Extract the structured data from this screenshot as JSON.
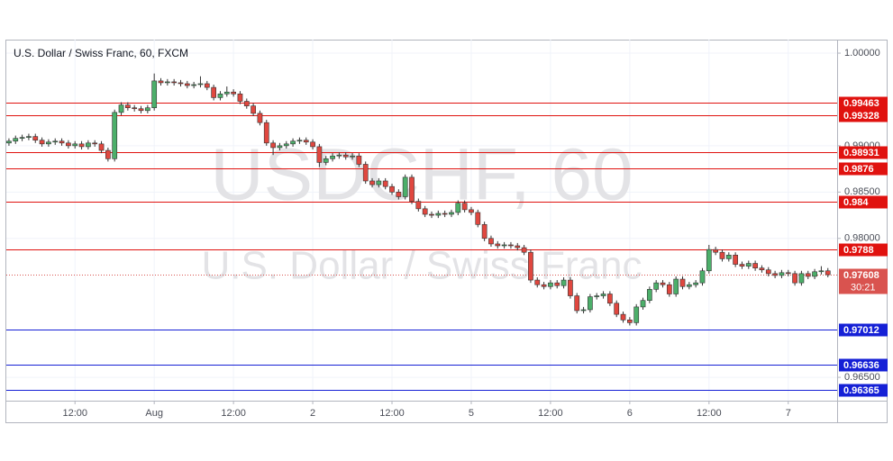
{
  "chart_data": {
    "type": "candlestick",
    "title": "U.S. Dollar / Swiss Franc, 60, FXCM",
    "watermark": "USDCHF, 60",
    "watermark_subtitle": "U.S. Dollar / Swiss Franc",
    "x": [
      0,
      1,
      2,
      3,
      4,
      5,
      6,
      7,
      8,
      9,
      10,
      11,
      12,
      13,
      14,
      15,
      16,
      17,
      18,
      19,
      20,
      21,
      22,
      23,
      24,
      25,
      26,
      27,
      28,
      29,
      30,
      31,
      32,
      33,
      34,
      35,
      36,
      37,
      38,
      39,
      40,
      41,
      42,
      43,
      44,
      45,
      46,
      47,
      48,
      49,
      50,
      51,
      52,
      53,
      54,
      55,
      56,
      57,
      58,
      59,
      60,
      61,
      62,
      63,
      64,
      65,
      66,
      67,
      68,
      69,
      70,
      71,
      72,
      73,
      74,
      75,
      76,
      77,
      78,
      79,
      80,
      81,
      82,
      83,
      84,
      85,
      86,
      87,
      88,
      89,
      90,
      91,
      92,
      93,
      94,
      95,
      96,
      97,
      98,
      99,
      100,
      101,
      102,
      103,
      104,
      105,
      106,
      107,
      108,
      109,
      110,
      111,
      112,
      113,
      114,
      115,
      116,
      117,
      118,
      119,
      120,
      121,
      122,
      123,
      124
    ],
    "open": [
      0.9903,
      0.9905,
      0.9908,
      0.9909,
      0.991,
      0.9906,
      0.9902,
      0.9904,
      0.9905,
      0.9903,
      0.99,
      0.9902,
      0.9899,
      0.9903,
      0.9902,
      0.9895,
      0.9886,
      0.9936,
      0.9944,
      0.9941,
      0.994,
      0.9938,
      0.9941,
      0.997,
      0.9968,
      0.9969,
      0.9968,
      0.9967,
      0.9965,
      0.9966,
      0.9967,
      0.9963,
      0.9952,
      0.9956,
      0.9958,
      0.9956,
      0.9948,
      0.9943,
      0.9935,
      0.9925,
      0.9903,
      0.9898,
      0.99,
      0.9902,
      0.9905,
      0.9906,
      0.9904,
      0.9899,
      0.9882,
      0.9886,
      0.9889,
      0.989,
      0.9888,
      0.9889,
      0.988,
      0.9862,
      0.9858,
      0.9862,
      0.9856,
      0.985,
      0.9845,
      0.9866,
      0.984,
      0.9832,
      0.9826,
      0.9825,
      0.9827,
      0.9826,
      0.9828,
      0.9838,
      0.9831,
      0.9828,
      0.9815,
      0.98,
      0.9794,
      0.9792,
      0.9793,
      0.9792,
      0.979,
      0.9785,
      0.9755,
      0.975,
      0.9748,
      0.9752,
      0.9749,
      0.9755,
      0.9738,
      0.9722,
      0.9723,
      0.9737,
      0.9738,
      0.974,
      0.973,
      0.9718,
      0.9712,
      0.9709,
      0.9726,
      0.9733,
      0.9745,
      0.9752,
      0.975,
      0.974,
      0.9756,
      0.9748,
      0.975,
      0.9752,
      0.9765,
      0.9788,
      0.9785,
      0.9778,
      0.9782,
      0.9772,
      0.977,
      0.9773,
      0.9768,
      0.9766,
      0.9762,
      0.976,
      0.9763,
      0.9762,
      0.9752,
      0.9762,
      0.9759,
      0.9764,
      0.9765
    ],
    "high": [
      0.9908,
      0.9911,
      0.9912,
      0.9913,
      0.9913,
      0.9909,
      0.9907,
      0.9908,
      0.9908,
      0.9906,
      0.9905,
      0.9905,
      0.9906,
      0.9906,
      0.9905,
      0.9898,
      0.9939,
      0.9947,
      0.9947,
      0.9944,
      0.9943,
      0.9944,
      0.9978,
      0.9973,
      0.9972,
      0.9972,
      0.9971,
      0.997,
      0.9969,
      0.9975,
      0.997,
      0.9966,
      0.9959,
      0.9964,
      0.9961,
      0.9959,
      0.9951,
      0.9946,
      0.9938,
      0.9928,
      0.9906,
      0.9903,
      0.9905,
      0.9908,
      0.9909,
      0.9909,
      0.9907,
      0.9902,
      0.9889,
      0.9892,
      0.9893,
      0.9893,
      0.9892,
      0.9892,
      0.9883,
      0.9865,
      0.9865,
      0.9865,
      0.9859,
      0.9853,
      0.9869,
      0.9869,
      0.9843,
      0.9835,
      0.9829,
      0.983,
      0.983,
      0.9831,
      0.9841,
      0.9841,
      0.9834,
      0.9831,
      0.9818,
      0.9803,
      0.9797,
      0.9796,
      0.9796,
      0.9795,
      0.9793,
      0.9788,
      0.9758,
      0.9753,
      0.9755,
      0.9755,
      0.9758,
      0.9758,
      0.9741,
      0.9726,
      0.974,
      0.9741,
      0.9743,
      0.9743,
      0.9733,
      0.9721,
      0.9715,
      0.9729,
      0.9736,
      0.9748,
      0.9755,
      0.9755,
      0.9753,
      0.9759,
      0.9759,
      0.9753,
      0.9755,
      0.9768,
      0.9793,
      0.9791,
      0.9788,
      0.9785,
      0.9785,
      0.9775,
      0.9776,
      0.9776,
      0.9771,
      0.9769,
      0.9765,
      0.9766,
      0.9766,
      0.9765,
      0.9765,
      0.9765,
      0.9767,
      0.977,
      0.9768
    ],
    "low": [
      0.99,
      0.9902,
      0.9905,
      0.9906,
      0.9903,
      0.9899,
      0.9899,
      0.9901,
      0.99,
      0.9897,
      0.9897,
      0.9896,
      0.9896,
      0.9899,
      0.9892,
      0.9883,
      0.9883,
      0.9933,
      0.9938,
      0.9937,
      0.9935,
      0.9935,
      0.9938,
      0.9965,
      0.9965,
      0.9965,
      0.9964,
      0.9962,
      0.9962,
      0.9963,
      0.996,
      0.9949,
      0.9949,
      0.9953,
      0.9953,
      0.9945,
      0.994,
      0.9932,
      0.9922,
      0.99,
      0.989,
      0.9895,
      0.9897,
      0.9899,
      0.9902,
      0.9901,
      0.9896,
      0.9877,
      0.9879,
      0.9883,
      0.9886,
      0.9885,
      0.9885,
      0.9877,
      0.9859,
      0.9855,
      0.9855,
      0.9853,
      0.9847,
      0.9842,
      0.9842,
      0.9837,
      0.9829,
      0.9823,
      0.9822,
      0.9822,
      0.9823,
      0.9823,
      0.9825,
      0.9828,
      0.9825,
      0.9812,
      0.9797,
      0.9791,
      0.9789,
      0.9789,
      0.9789,
      0.9787,
      0.9782,
      0.9752,
      0.9747,
      0.9745,
      0.9745,
      0.9746,
      0.9746,
      0.9735,
      0.9719,
      0.9719,
      0.972,
      0.9734,
      0.9735,
      0.9727,
      0.9715,
      0.9709,
      0.9706,
      0.9706,
      0.9723,
      0.973,
      0.9742,
      0.9747,
      0.9737,
      0.9737,
      0.9745,
      0.9745,
      0.9747,
      0.9749,
      0.9762,
      0.9782,
      0.9775,
      0.9775,
      0.9769,
      0.9767,
      0.9767,
      0.9765,
      0.9763,
      0.9759,
      0.9757,
      0.9757,
      0.9759,
      0.9749,
      0.9749,
      0.9756,
      0.9756,
      0.9761,
      0.9758
    ],
    "close": [
      0.9905,
      0.9908,
      0.9909,
      0.991,
      0.9906,
      0.9902,
      0.9904,
      0.9905,
      0.9903,
      0.99,
      0.9902,
      0.9899,
      0.9903,
      0.9902,
      0.9895,
      0.9886,
      0.9936,
      0.9944,
      0.9941,
      0.994,
      0.9938,
      0.9941,
      0.997,
      0.9968,
      0.9969,
      0.9968,
      0.9967,
      0.9965,
      0.9966,
      0.9967,
      0.9963,
      0.9952,
      0.9956,
      0.9958,
      0.9956,
      0.9948,
      0.9943,
      0.9935,
      0.9925,
      0.9903,
      0.9898,
      0.99,
      0.9902,
      0.9905,
      0.9906,
      0.9904,
      0.9899,
      0.9882,
      0.9886,
      0.9889,
      0.989,
      0.9888,
      0.9889,
      0.988,
      0.9862,
      0.9858,
      0.9862,
      0.9856,
      0.985,
      0.9845,
      0.9866,
      0.984,
      0.9832,
      0.9826,
      0.9825,
      0.9827,
      0.9826,
      0.9828,
      0.9838,
      0.9831,
      0.9828,
      0.9815,
      0.98,
      0.9794,
      0.9792,
      0.9793,
      0.9792,
      0.979,
      0.9785,
      0.9755,
      0.975,
      0.9748,
      0.9752,
      0.9749,
      0.9755,
      0.9738,
      0.9722,
      0.9723,
      0.9737,
      0.9738,
      0.974,
      0.973,
      0.9718,
      0.9712,
      0.9709,
      0.9726,
      0.9733,
      0.9745,
      0.9752,
      0.975,
      0.974,
      0.9756,
      0.9748,
      0.975,
      0.9752,
      0.9765,
      0.9788,
      0.9785,
      0.9778,
      0.9782,
      0.9772,
      0.977,
      0.9773,
      0.9768,
      0.9766,
      0.9762,
      0.976,
      0.9763,
      0.9762,
      0.9752,
      0.9762,
      0.9759,
      0.9764,
      0.9765,
      0.97608
    ],
    "up_color": "#4caf6a",
    "down_color": "#e0473f",
    "xlim": [
      -0.4,
      125.4
    ],
    "xticks": [
      {
        "value": 10,
        "label": "12:00"
      },
      {
        "value": 22,
        "label": "Aug"
      },
      {
        "value": 34,
        "label": "12:00"
      },
      {
        "value": 46,
        "label": "2"
      },
      {
        "value": 58,
        "label": "12:00"
      },
      {
        "value": 70,
        "label": "5"
      },
      {
        "value": 82,
        "label": "12:00"
      },
      {
        "value": 94,
        "label": "6"
      },
      {
        "value": 106,
        "label": "12:00"
      },
      {
        "value": 118,
        "label": "7"
      }
    ],
    "ylim": [
      0.96248,
      1.00146
    ],
    "yticks": [
      {
        "value": 1,
        "label": "1.00000"
      },
      {
        "value": 0.99,
        "label": "0.99000"
      },
      {
        "value": 0.985,
        "label": "0.98500"
      },
      {
        "value": 0.98,
        "label": "0.98000"
      },
      {
        "value": 0.965,
        "label": "0.96500"
      }
    ],
    "grid": true,
    "levels": [
      {
        "value": 0.99463,
        "color": "#e0120f"
      },
      {
        "value": 0.99328,
        "color": "#e0120f"
      },
      {
        "value": 0.98931,
        "color": "#e0120f"
      },
      {
        "value": 0.9876,
        "color": "#e0120f"
      },
      {
        "value": 0.984,
        "color": "#e0120f"
      },
      {
        "value": 0.9788,
        "color": "#e0120f"
      },
      {
        "value": 0.97012,
        "color": "#1520d6"
      },
      {
        "value": 0.96636,
        "color": "#1520d6"
      },
      {
        "value": 0.96365,
        "color": "#1520d6"
      }
    ],
    "last_price": 0.97608,
    "last_price_color": "#d9534f",
    "countdown": "30:21"
  }
}
